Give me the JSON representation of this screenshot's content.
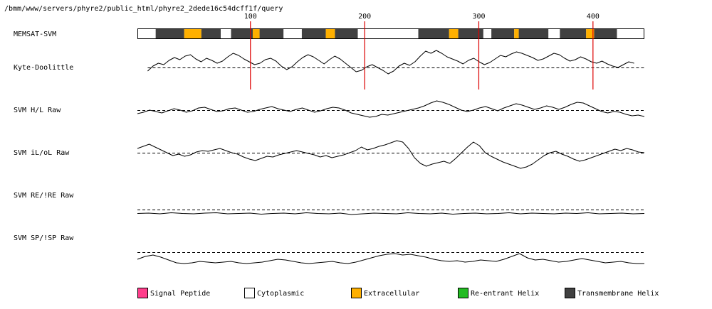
{
  "path_label": "/bmm/www/servers/phyre2/public_html/phyre2_2dede16c54dcff1f/query",
  "ruler_ticks": [
    100,
    200,
    300,
    400
  ],
  "colors": {
    "signal": "#ff3d8b",
    "cytoplasmic": "#ffffff",
    "extracellular": "#ffb000",
    "reentrant": "#22bb22",
    "transmembrane": "#404040",
    "marker": "#dd0000",
    "trace": "#000000"
  },
  "legend": [
    {
      "label": "Signal Peptide",
      "color_key": "signal"
    },
    {
      "label": "Cytoplasmic",
      "color_key": "cytoplasmic"
    },
    {
      "label": "Extracellular",
      "color_key": "extracellular"
    },
    {
      "label": "Re-entrant Helix",
      "color_key": "reentrant"
    },
    {
      "label": "Transmembrane Helix",
      "color_key": "transmembrane"
    }
  ],
  "chart_data": {
    "type": "line",
    "x_range": [
      1,
      445
    ],
    "memsat": {
      "label": "MEMSAT-SVM",
      "segments": [
        {
          "start": 1,
          "end": 17,
          "type": "cytoplasmic"
        },
        {
          "start": 17,
          "end": 42,
          "type": "transmembrane"
        },
        {
          "start": 42,
          "end": 57,
          "type": "extracellular"
        },
        {
          "start": 57,
          "end": 74,
          "type": "transmembrane"
        },
        {
          "start": 74,
          "end": 83,
          "type": "cytoplasmic"
        },
        {
          "start": 83,
          "end": 102,
          "type": "transmembrane"
        },
        {
          "start": 102,
          "end": 108,
          "type": "extracellular"
        },
        {
          "start": 108,
          "end": 129,
          "type": "transmembrane"
        },
        {
          "start": 129,
          "end": 145,
          "type": "cytoplasmic"
        },
        {
          "start": 145,
          "end": 166,
          "type": "transmembrane"
        },
        {
          "start": 166,
          "end": 174,
          "type": "extracellular"
        },
        {
          "start": 174,
          "end": 194,
          "type": "transmembrane"
        },
        {
          "start": 194,
          "end": 247,
          "type": "cytoplasmic"
        },
        {
          "start": 247,
          "end": 274,
          "type": "transmembrane"
        },
        {
          "start": 274,
          "end": 282,
          "type": "extracellular"
        },
        {
          "start": 282,
          "end": 304,
          "type": "transmembrane"
        },
        {
          "start": 304,
          "end": 311,
          "type": "cytoplasmic"
        },
        {
          "start": 311,
          "end": 331,
          "type": "transmembrane"
        },
        {
          "start": 331,
          "end": 335,
          "type": "extracellular"
        },
        {
          "start": 335,
          "end": 361,
          "type": "transmembrane"
        },
        {
          "start": 361,
          "end": 371,
          "type": "cytoplasmic"
        },
        {
          "start": 371,
          "end": 394,
          "type": "transmembrane"
        },
        {
          "start": 394,
          "end": 401,
          "type": "extracellular"
        },
        {
          "start": 401,
          "end": 421,
          "type": "transmembrane"
        },
        {
          "start": 421,
          "end": 445,
          "type": "cytoplasmic"
        }
      ]
    },
    "tracks": [
      {
        "name": "Kyte-Doolittle",
        "x_start": 10,
        "x_end": 436,
        "values": [
          -0.5,
          0.2,
          0.6,
          0.4,
          1.0,
          1.4,
          1.1,
          1.6,
          1.8,
          1.2,
          0.8,
          1.3,
          1.0,
          0.6,
          0.9,
          1.5,
          2.0,
          1.7,
          1.2,
          0.8,
          0.4,
          0.6,
          1.1,
          1.3,
          0.9,
          0.2,
          -0.3,
          0.1,
          0.8,
          1.4,
          1.8,
          1.5,
          1.0,
          0.5,
          1.1,
          1.6,
          1.2,
          0.6,
          0.0,
          -0.6,
          -0.4,
          0.1,
          0.4,
          0.0,
          -0.4,
          -0.9,
          -0.5,
          0.2,
          0.6,
          0.3,
          0.8,
          1.6,
          2.3,
          2.0,
          2.4,
          2.0,
          1.5,
          1.2,
          0.9,
          0.5,
          1.0,
          1.3,
          0.8,
          0.4,
          0.7,
          1.2,
          1.7,
          1.5,
          1.9,
          2.2,
          2.0,
          1.7,
          1.4,
          1.0,
          1.2,
          1.6,
          2.0,
          1.8,
          1.3,
          0.9,
          1.1,
          1.5,
          1.2,
          0.8,
          0.6,
          0.9,
          0.5,
          0.2,
          0.0,
          0.4,
          0.8,
          0.6
        ]
      },
      {
        "name": "SVM H/L Raw",
        "x_start": 1,
        "x_end": 445,
        "values": [
          -0.5,
          -0.3,
          0.0,
          -0.2,
          -0.4,
          -0.1,
          0.2,
          0.0,
          -0.3,
          -0.1,
          0.3,
          0.4,
          0.1,
          -0.2,
          -0.1,
          0.2,
          0.3,
          0.0,
          -0.3,
          -0.2,
          0.1,
          0.3,
          0.5,
          0.2,
          0.0,
          -0.2,
          0.1,
          0.3,
          0.0,
          -0.3,
          -0.1,
          0.2,
          0.4,
          0.3,
          0.0,
          -0.4,
          -0.6,
          -0.8,
          -1.0,
          -0.9,
          -0.6,
          -0.7,
          -0.5,
          -0.3,
          -0.1,
          0.1,
          0.3,
          0.6,
          1.0,
          1.3,
          1.1,
          0.8,
          0.4,
          0.0,
          -0.2,
          0.0,
          0.3,
          0.5,
          0.2,
          -0.1,
          0.3,
          0.6,
          0.9,
          0.7,
          0.4,
          0.1,
          0.3,
          0.6,
          0.4,
          0.1,
          0.4,
          0.8,
          1.1,
          1.0,
          0.6,
          0.2,
          -0.2,
          -0.4,
          -0.2,
          -0.3,
          -0.6,
          -0.8,
          -0.7,
          -0.9
        ]
      },
      {
        "name": "SVM iL/oL Raw",
        "x_start": 1,
        "x_end": 445,
        "values": [
          0.6,
          0.9,
          1.2,
          0.8,
          0.4,
          0.0,
          -0.4,
          -0.2,
          -0.5,
          -0.3,
          0.1,
          0.3,
          0.2,
          0.4,
          0.6,
          0.3,
          0.0,
          -0.2,
          -0.6,
          -0.9,
          -1.1,
          -0.8,
          -0.5,
          -0.6,
          -0.3,
          -0.1,
          0.1,
          0.3,
          0.1,
          -0.1,
          -0.3,
          -0.6,
          -0.4,
          -0.7,
          -0.5,
          -0.3,
          0.0,
          0.3,
          0.8,
          0.4,
          0.6,
          0.9,
          1.1,
          1.4,
          1.7,
          1.5,
          0.6,
          -0.7,
          -1.5,
          -1.9,
          -1.6,
          -1.4,
          -1.2,
          -1.5,
          -0.8,
          0.0,
          0.8,
          1.5,
          1.0,
          0.0,
          -0.5,
          -0.9,
          -1.3,
          -1.6,
          -1.9,
          -2.2,
          -2.0,
          -1.6,
          -1.0,
          -0.4,
          0.0,
          0.2,
          -0.2,
          -0.5,
          -0.9,
          -1.2,
          -1.0,
          -0.7,
          -0.4,
          -0.1,
          0.2,
          0.5,
          0.3,
          0.6,
          0.4,
          0.1,
          0.0
        ]
      },
      {
        "name": "SVM RE/!RE Raw",
        "x_start": 1,
        "x_end": 445,
        "values": [
          -0.55,
          -0.5,
          -0.6,
          -0.45,
          -0.55,
          -0.6,
          -0.5,
          -0.45,
          -0.6,
          -0.55,
          -0.5,
          -0.65,
          -0.55,
          -0.5,
          -0.6,
          -0.45,
          -0.55,
          -0.6,
          -0.5,
          -0.7,
          -0.6,
          -0.5,
          -0.55,
          -0.6,
          -0.45,
          -0.55,
          -0.6,
          -0.5,
          -0.65,
          -0.55,
          -0.5,
          -0.6,
          -0.55,
          -0.45,
          -0.6,
          -0.5,
          -0.55,
          -0.6,
          -0.5,
          -0.55,
          -0.45,
          -0.6,
          -0.55,
          -0.5,
          -0.6,
          -0.55
        ]
      },
      {
        "name": "SVM SP/!SP Raw",
        "x_start": 1,
        "x_end": 445,
        "values": [
          -1.0,
          -0.6,
          -0.4,
          -0.7,
          -1.1,
          -1.5,
          -1.6,
          -1.5,
          -1.3,
          -1.4,
          -1.5,
          -1.4,
          -1.3,
          -1.5,
          -1.6,
          -1.5,
          -1.4,
          -1.2,
          -1.0,
          -1.1,
          -1.3,
          -1.5,
          -1.6,
          -1.5,
          -1.4,
          -1.3,
          -1.5,
          -1.6,
          -1.4,
          -1.1,
          -0.8,
          -0.5,
          -0.3,
          -0.2,
          -0.4,
          -0.3,
          -0.5,
          -0.7,
          -1.0,
          -1.2,
          -1.3,
          -1.2,
          -1.4,
          -1.3,
          -1.1,
          -1.2,
          -1.3,
          -1.0,
          -0.6,
          -0.2,
          -0.8,
          -1.1,
          -1.0,
          -1.2,
          -1.4,
          -1.3,
          -1.1,
          -0.9,
          -1.1,
          -1.3,
          -1.5,
          -1.4,
          -1.3,
          -1.5,
          -1.6,
          -1.6
        ]
      }
    ]
  }
}
